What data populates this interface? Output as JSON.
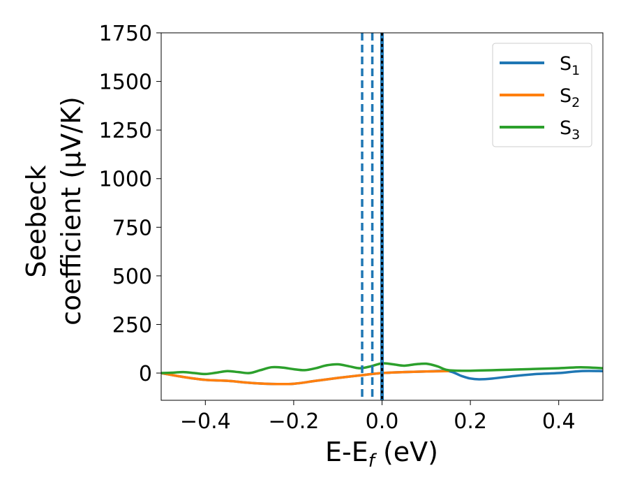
{
  "chart_data": {
    "type": "line",
    "title": "",
    "xlabel_main": "E-E",
    "xlabel_sub": "f",
    "xlabel_unit": " (eV)",
    "ylabel_line1": "Seebeck",
    "ylabel_line2": "coefficient  (μV/K)",
    "xlim": [
      -0.5,
      0.5
    ],
    "ylim": [
      -140,
      1750
    ],
    "xticks": [
      -0.4,
      -0.2,
      0.0,
      0.2,
      0.4
    ],
    "xtick_labels": [
      "−0.4",
      "−0.2",
      "0.0",
      "0.2",
      "0.4"
    ],
    "yticks": [
      0,
      250,
      500,
      750,
      1000,
      1250,
      1500,
      1750
    ],
    "ytick_labels": [
      "0",
      "250",
      "500",
      "750",
      "1000",
      "1250",
      "1500",
      "1750"
    ],
    "grid": false,
    "legend_position": "top-right",
    "series": [
      {
        "name_main": "S",
        "name_sub": "1",
        "color": "#1f77b4",
        "x": [
          -0.5,
          -0.45,
          -0.4,
          -0.35,
          -0.3,
          -0.25,
          -0.2,
          -0.15,
          -0.1,
          -0.05,
          0.0,
          0.05,
          0.1,
          0.15,
          0.18,
          0.2,
          0.22,
          0.25,
          0.3,
          0.35,
          0.4,
          0.45,
          0.5
        ],
        "y": [
          0,
          -20,
          -35,
          -40,
          -50,
          -56,
          -55,
          -40,
          -25,
          -12,
          0,
          5,
          8,
          10,
          -15,
          -28,
          -32,
          -28,
          -15,
          -5,
          0,
          10,
          10
        ]
      },
      {
        "name_main": "S",
        "name_sub": "2",
        "color": "#ff7f0e",
        "x": [
          -0.5,
          -0.45,
          -0.4,
          -0.35,
          -0.3,
          -0.25,
          -0.2,
          -0.15,
          -0.1,
          -0.05,
          0.0,
          0.05,
          0.1,
          0.15
        ],
        "y": [
          0,
          -20,
          -35,
          -40,
          -50,
          -56,
          -55,
          -40,
          -25,
          -12,
          0,
          5,
          8,
          10
        ]
      },
      {
        "name_main": "S",
        "name_sub": "3",
        "color": "#2ca02c",
        "x": [
          -0.5,
          -0.475,
          -0.45,
          -0.425,
          -0.4,
          -0.375,
          -0.35,
          -0.325,
          -0.3,
          -0.275,
          -0.25,
          -0.225,
          -0.2,
          -0.175,
          -0.15,
          -0.125,
          -0.1,
          -0.075,
          -0.05,
          -0.025,
          0.0,
          0.025,
          0.05,
          0.075,
          0.1,
          0.125,
          0.15,
          0.2,
          0.3,
          0.4,
          0.45,
          0.5
        ],
        "y": [
          0,
          2,
          5,
          0,
          -5,
          2,
          10,
          5,
          0,
          15,
          30,
          28,
          20,
          15,
          25,
          40,
          45,
          35,
          25,
          35,
          50,
          45,
          38,
          45,
          48,
          35,
          15,
          12,
          18,
          25,
          30,
          25
        ]
      }
    ],
    "vertical_lines": [
      {
        "x": -0.045,
        "color": "#1f77b4",
        "style": "dashed"
      },
      {
        "x": -0.022,
        "color": "#1f77b4",
        "style": "dashed"
      },
      {
        "x": 0.0,
        "color": "#1f77b4",
        "style": "solid"
      },
      {
        "x": 0.0,
        "color": "#000000",
        "style": "dotted"
      }
    ]
  }
}
